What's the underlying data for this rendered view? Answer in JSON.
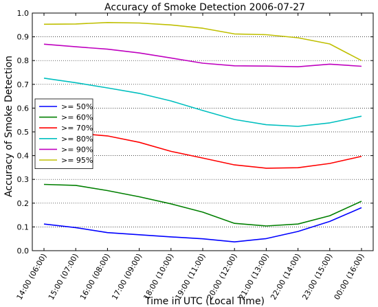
{
  "chart_data": {
    "type": "line",
    "title": "Accuracy of Smoke Detection 2006-07-27",
    "xlabel": "Time in UTC (Local Time)",
    "ylabel": "Accuracy of Smoke Detection",
    "ylim": [
      0,
      1.0
    ],
    "yticks": [
      "0.0",
      "0.1",
      "0.2",
      "0.3",
      "0.4",
      "0.5",
      "0.6",
      "0.7",
      "0.8",
      "0.9",
      "1.0"
    ],
    "grid": "horizontal-dotted",
    "legend_position": "center-left",
    "categories": [
      "14:00 (06:00)",
      "15:00 (07:00)",
      "16:00 (08:00)",
      "17:00 (09:00)",
      "18:00 (10:00)",
      "19:00 (11:00)",
      "20:00 (12:00)",
      "21:00 (13:00)",
      "22:00 (14:00)",
      "23:00 (15:00)",
      "00:00 (16:00)"
    ],
    "series": [
      {
        "name": ">= 50%",
        "color": "#0000ff",
        "values": [
          0.112,
          0.097,
          0.076,
          0.067,
          0.058,
          0.05,
          0.037,
          0.051,
          0.081,
          0.123,
          0.181
        ]
      },
      {
        "name": ">= 60%",
        "color": "#007f00",
        "values": [
          0.279,
          0.275,
          0.253,
          0.227,
          0.197,
          0.162,
          0.115,
          0.104,
          0.112,
          0.147,
          0.208
        ]
      },
      {
        "name": ">= 70%",
        "color": "#ff0000",
        "values": [
          0.501,
          0.494,
          0.483,
          0.456,
          0.418,
          0.39,
          0.361,
          0.347,
          0.349,
          0.367,
          0.397
        ]
      },
      {
        "name": ">= 80%",
        "color": "#00bfbf",
        "values": [
          0.726,
          0.707,
          0.685,
          0.662,
          0.63,
          0.59,
          0.552,
          0.53,
          0.523,
          0.538,
          0.566
        ]
      },
      {
        "name": ">= 90%",
        "color": "#bf00bf",
        "values": [
          0.869,
          0.858,
          0.848,
          0.832,
          0.811,
          0.789,
          0.778,
          0.777,
          0.774,
          0.785,
          0.776
        ]
      },
      {
        "name": ">= 95%",
        "color": "#bfbf00",
        "values": [
          0.953,
          0.954,
          0.96,
          0.958,
          0.95,
          0.936,
          0.912,
          0.909,
          0.896,
          0.87,
          0.8
        ]
      }
    ]
  }
}
